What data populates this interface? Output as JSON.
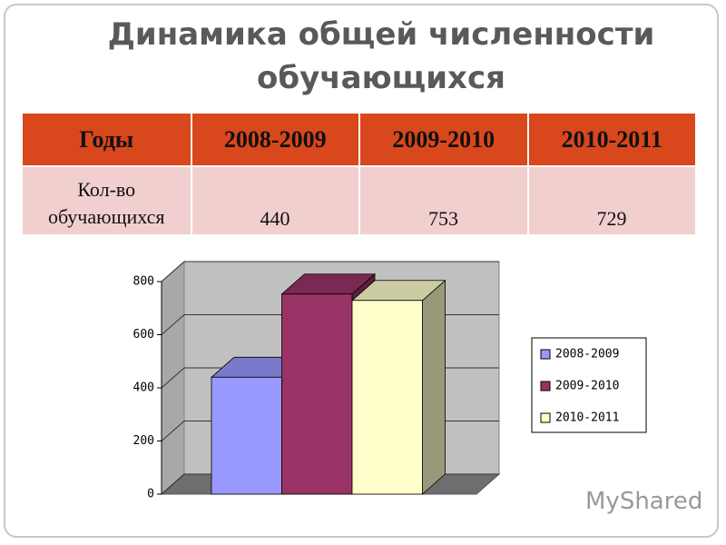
{
  "title": "Динамика общей численности обучающихся",
  "table": {
    "header": [
      "Годы",
      "2008-2009",
      "2009-2010",
      "2010-2011"
    ],
    "rows": [
      [
        "Кол-во обучающихся",
        440,
        753,
        729
      ]
    ]
  },
  "watermark": "MyShared",
  "chart_data": {
    "type": "bar",
    "categories": [
      null
    ],
    "series": [
      {
        "name": "2008-2009",
        "color": "#9999ff",
        "values": [
          440
        ]
      },
      {
        "name": "2009-2010",
        "color": "#993366",
        "values": [
          753
        ]
      },
      {
        "name": "2010-2011",
        "color": "#ffffcc",
        "values": [
          729
        ]
      }
    ],
    "ylim": [
      0,
      800
    ],
    "yticks": [
      0,
      200,
      400,
      600,
      800
    ],
    "grid": true,
    "legend": "right"
  }
}
